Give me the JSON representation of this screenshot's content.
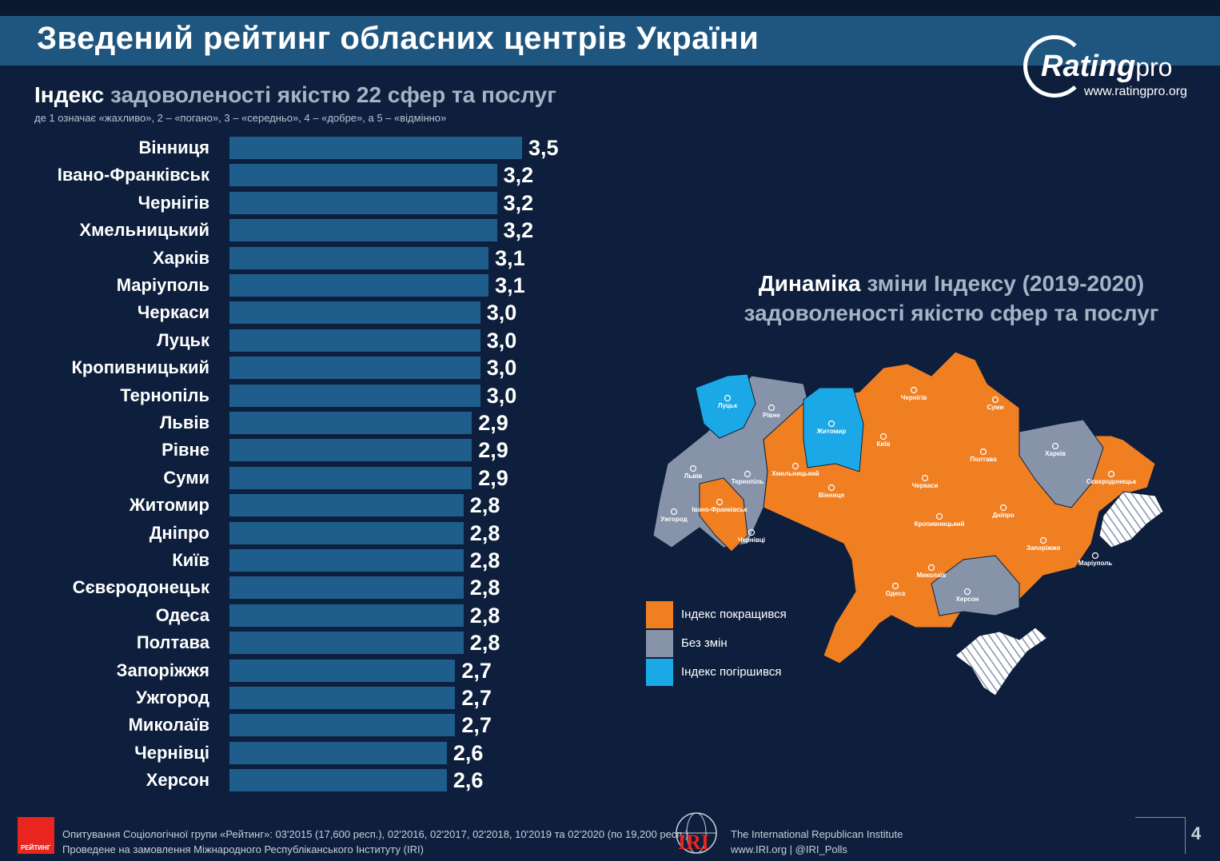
{
  "header": {
    "title": "Зведений рейтинг обласних центрів України"
  },
  "logo": {
    "word_a": "Rating",
    "word_b": "pro",
    "url": "www.ratingpro.org"
  },
  "index_title": {
    "part1": "Індекс",
    "part2": "задоволеності якістю 22 сфер та послуг"
  },
  "index_subtitle": "де 1 означає «жахливо», 2 – «погано», 3 – «середньо», 4 – «добре», а 5 – «відмінно»",
  "chart_data": {
    "type": "bar",
    "orientation": "horizontal",
    "categories": [
      "Вінниця",
      "Івано-Франківськ",
      "Чернігів",
      "Хмельницький",
      "Харків",
      "Маріуполь",
      "Черкаси",
      "Луцьк",
      "Кропивницький",
      "Тернопіль",
      "Львів",
      "Рівне",
      "Суми",
      "Житомир",
      "Дніпро",
      "Київ",
      "Сєвєродонецьк",
      "Одеса",
      "Полтава",
      "Запоріжжя",
      "Ужгород",
      "Миколаїв",
      "Чернівці",
      "Херсон"
    ],
    "values": [
      3.5,
      3.2,
      3.2,
      3.2,
      3.1,
      3.1,
      3.0,
      3.0,
      3.0,
      3.0,
      2.9,
      2.9,
      2.9,
      2.8,
      2.8,
      2.8,
      2.8,
      2.8,
      2.8,
      2.7,
      2.7,
      2.7,
      2.6,
      2.6
    ],
    "value_labels": [
      "3,5",
      "3,2",
      "3,2",
      "3,2",
      "3,1",
      "3,1",
      "3,0",
      "3,0",
      "3,0",
      "3,0",
      "2,9",
      "2,9",
      "2,9",
      "2,8",
      "2,8",
      "2,8",
      "2,8",
      "2,8",
      "2,8",
      "2,7",
      "2,7",
      "2,7",
      "2,6",
      "2,6"
    ],
    "bar_color": "#1f5e8c"
  },
  "dynamics": {
    "title_part1": "Динаміка",
    "title_part2": "зміни Індексу (2019-2020)",
    "title_line2": "задоволеності якістю сфер та послуг",
    "city_labels": [
      "Луцьк",
      "Рівне",
      "Житомир",
      "Київ",
      "Чернігів",
      "Суми",
      "Харків",
      "Полтава",
      "Сєвєродонецьк",
      "Львів",
      "Тернопіль",
      "Хмельницький",
      "Вінниця",
      "Черкаси",
      "Івано-Франківськ",
      "Ужгород",
      "Чернівці",
      "Кропивницький",
      "Дніпро",
      "Запоріжжя",
      "Маріуполь",
      "Миколаїв",
      "Одеса",
      "Херсон"
    ],
    "legend": [
      {
        "label": "Індекс покращився",
        "color": "#f07f22"
      },
      {
        "label": "Без змін",
        "color": "#8693a8"
      },
      {
        "label": "Індекс погіршився",
        "color": "#1aa9e6"
      }
    ]
  },
  "footer": {
    "badge": "РЕЙТИНГ",
    "line1": "Опитування Соціологічної групи «Рейтинг»: 03'2015 (17,600 респ.), 02'2016, 02'2017, 02'2018, 10'2019 та 02'2020 (по 19,200 респ.).",
    "line2": "Проведене на замовлення Міжнародного Республіканського Інституту (IRI)",
    "iri_mark": "IRI",
    "iri_line1": "The International Republican Institute",
    "iri_line2": "www.IRI.org | @IRI_Polls",
    "page": "4"
  }
}
